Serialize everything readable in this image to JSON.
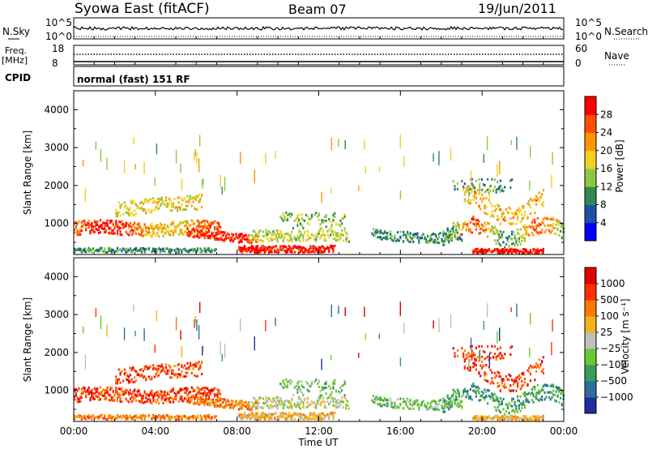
{
  "header": {
    "station": "Syowa East (fitACF)",
    "beam": "Beam 07",
    "date": "19/Jun/2011"
  },
  "top_panels": {
    "nsky_label": "N.Sky",
    "nsky_ticks": [
      "10^5",
      "10^0"
    ],
    "nsearch_label": "N.Search",
    "nsearch_ticks": [
      "10^5",
      "10^0"
    ],
    "freq_label_1": "Freq.",
    "freq_label_2": "[MHz]",
    "freq_ticks": [
      "18",
      "8"
    ],
    "nave_label": "Nave",
    "nave_ticks": [
      "60",
      "0"
    ],
    "cpid_label": "CPID",
    "cpid_value": "normal (fast) 151 RF"
  },
  "chart_data": [
    {
      "type": "heatmap",
      "name": "power",
      "ylabel": "Slant Range [km]",
      "yticks": [
        1000,
        2000,
        3000,
        4000
      ],
      "ylim": [
        180,
        4500
      ],
      "xlim": [
        0,
        24
      ],
      "colorbar_label": "Power [dB]",
      "colorbar_ticks": [
        "28",
        "24",
        "20",
        "16",
        "12",
        "8",
        "4"
      ],
      "colorbar_colors": [
        "#0000ff",
        "#1e50a8",
        "#2e8a50",
        "#8cc846",
        "#f0d21e",
        "#ff9600",
        "#ff5000",
        "#ff0000"
      ]
    },
    {
      "type": "heatmap",
      "name": "velocity",
      "ylabel": "Slant Range [km]",
      "yticks": [
        1000,
        2000,
        3000,
        4000
      ],
      "ylim": [
        180,
        4500
      ],
      "xlim": [
        0,
        24
      ],
      "colorbar_label": "Velocity [m s⁻¹]",
      "colorbar_ticks": [
        "1000",
        "500",
        "100",
        "25",
        "−25",
        "−100",
        "−500",
        "−1000"
      ],
      "colorbar_colors": [
        "#1c2ea0",
        "#2e6ea0",
        "#3a9a58",
        "#6ac832",
        "#bebebe",
        "#f0b418",
        "#ff7a00",
        "#ff3000",
        "#e00000"
      ]
    }
  ],
  "xaxis": {
    "ticks": [
      "00:00",
      "04:00",
      "08:00",
      "12:00",
      "16:00",
      "20:00",
      "00:00"
    ],
    "label": "Time UT"
  }
}
